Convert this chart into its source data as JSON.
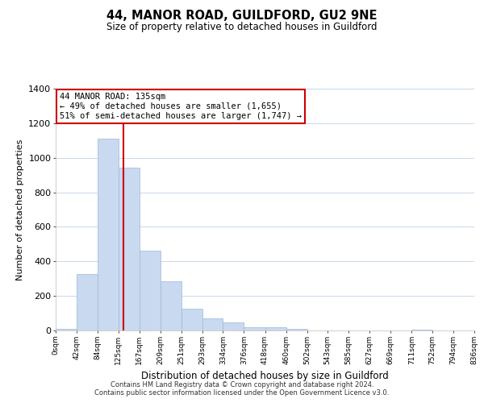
{
  "title": "44, MANOR ROAD, GUILDFORD, GU2 9NE",
  "subtitle": "Size of property relative to detached houses in Guildford",
  "xlabel": "Distribution of detached houses by size in Guildford",
  "ylabel": "Number of detached properties",
  "bar_color": "#c9d9f0",
  "bar_edge_color": "#9ab8d8",
  "background_color": "#ffffff",
  "grid_color": "#c8d8ec",
  "annotation_box_color": "#ffffff",
  "annotation_box_edge": "#cc0000",
  "vertical_line_color": "#cc0000",
  "bin_edges": [
    0,
    42,
    84,
    125,
    167,
    209,
    251,
    293,
    334,
    376,
    418,
    460,
    502,
    543,
    585,
    627,
    669,
    711,
    752,
    794,
    836
  ],
  "bar_heights": [
    8,
    328,
    1113,
    945,
    463,
    284,
    127,
    70,
    46,
    20,
    20,
    8,
    0,
    0,
    0,
    0,
    0,
    5,
    0,
    0
  ],
  "tick_labels": [
    "0sqm",
    "42sqm",
    "84sqm",
    "125sqm",
    "167sqm",
    "209sqm",
    "251sqm",
    "293sqm",
    "334sqm",
    "376sqm",
    "418sqm",
    "460sqm",
    "502sqm",
    "543sqm",
    "585sqm",
    "627sqm",
    "669sqm",
    "711sqm",
    "752sqm",
    "794sqm",
    "836sqm"
  ],
  "property_size": 135,
  "annotation_title": "44 MANOR ROAD: 135sqm",
  "annotation_line1": "← 49% of detached houses are smaller (1,655)",
  "annotation_line2": "51% of semi-detached houses are larger (1,747) →",
  "ylim": [
    0,
    1400
  ],
  "yticks": [
    0,
    200,
    400,
    600,
    800,
    1000,
    1200,
    1400
  ],
  "footer1": "Contains HM Land Registry data © Crown copyright and database right 2024.",
  "footer2": "Contains public sector information licensed under the Open Government Licence v3.0."
}
